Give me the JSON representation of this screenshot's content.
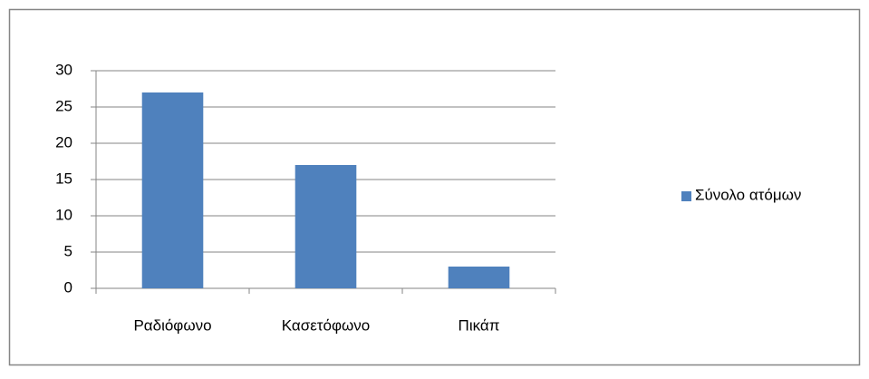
{
  "chart_data": {
    "type": "bar",
    "categories": [
      "Ραδιόφωνο",
      "Κασετόφωνο",
      "Πικάπ"
    ],
    "series": [
      {
        "name": "Σύνολο ατόμων",
        "color": "#4f81bd",
        "values": [
          27,
          17,
          3
        ]
      }
    ],
    "ylim": [
      0,
      30
    ],
    "yticks": [
      0,
      5,
      10,
      15,
      20,
      25,
      30
    ],
    "grid": true,
    "legend": "right"
  }
}
